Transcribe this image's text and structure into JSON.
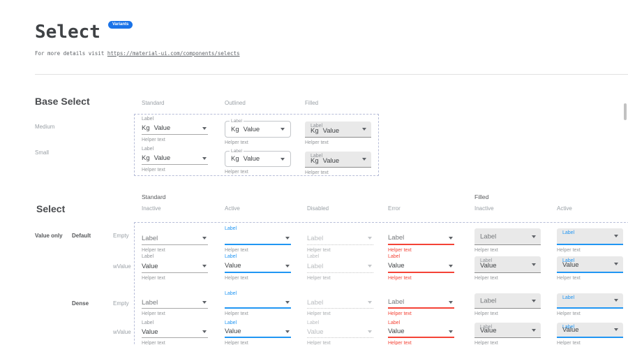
{
  "page": {
    "title": "Select",
    "badge": "Variants",
    "subtitle_prefix": "For more details visit ",
    "subtitle_link": "https://material-ui.com/components/selects"
  },
  "colors": {
    "accent": "#2196F3",
    "error": "#F44336",
    "badge": "#1A73E8",
    "filled_background": "#E9E9E9",
    "dashed_border": "#B7BDD8"
  },
  "base_select": {
    "heading": "Base Select",
    "columns": [
      "Standard",
      "Outlined",
      "Filled"
    ],
    "row_labels": [
      "Medium",
      "Small"
    ],
    "field": {
      "label": "Label",
      "prefix": "Kg",
      "value": "Value",
      "helper": "Helper text"
    }
  },
  "select_sheet": {
    "heading": "Select",
    "group_labels": [
      "Standard",
      "Filled"
    ],
    "columns": [
      {
        "header": "Inactive",
        "variant": "standard",
        "state": "inactive"
      },
      {
        "header": "Active",
        "variant": "standard",
        "state": "active"
      },
      {
        "header": "Disabled",
        "variant": "standard",
        "state": "disabled"
      },
      {
        "header": "Error",
        "variant": "standard",
        "state": "error"
      },
      {
        "header": "Inactive",
        "variant": "filled",
        "state": "inactive"
      },
      {
        "header": "Active",
        "variant": "filled",
        "state": "active"
      }
    ],
    "side_labels": [
      "Value only",
      "Default",
      "Empty",
      "wValue",
      "Dense",
      "Empty",
      "wValue"
    ],
    "rows": [
      {
        "size": "default",
        "kind": "empty",
        "cells": [
          {
            "label": "",
            "value": "Label",
            "helper": "Helper text"
          },
          {
            "label": "Label",
            "value": "",
            "helper": "Helper text"
          },
          {
            "label": "",
            "value": "Label",
            "helper": "Helper text"
          },
          {
            "label": "",
            "value": "Label",
            "helper": "Helper text"
          },
          {
            "label": "",
            "value": "Label",
            "helper": "Helper text"
          },
          {
            "label": "Label",
            "value": "",
            "helper": "Helper text"
          }
        ]
      },
      {
        "size": "default",
        "kind": "value",
        "cells": [
          {
            "label": "Label",
            "value": "Value",
            "helper": "Helper text"
          },
          {
            "label": "Label",
            "value": "Value",
            "helper": "Helper text"
          },
          {
            "label": "Label",
            "value": "Label",
            "helper": "Helper text"
          },
          {
            "label": "Label",
            "value": "Value",
            "helper": "Helper text"
          },
          {
            "label": "Label",
            "value": "Value",
            "helper": "Helper text"
          },
          {
            "label": "Label",
            "value": "Value",
            "helper": "Helper text"
          }
        ]
      },
      {
        "size": "dense",
        "kind": "empty",
        "cells": [
          {
            "label": "",
            "value": "Label",
            "helper": "Helper text"
          },
          {
            "label": "Label",
            "value": "",
            "helper": "Helper text"
          },
          {
            "label": "",
            "value": "Label",
            "helper": "Helper text"
          },
          {
            "label": "",
            "value": "Label",
            "helper": "Helper text"
          },
          {
            "label": "",
            "value": "Label",
            "helper": "Helper text"
          },
          {
            "label": "Label",
            "value": "",
            "helper": "Helper text"
          }
        ]
      },
      {
        "size": "dense",
        "kind": "value",
        "cells": [
          {
            "label": "Label",
            "value": "Value",
            "helper": "Helper text"
          },
          {
            "label": "Label",
            "value": "Value",
            "helper": "Helper text"
          },
          {
            "label": "Label",
            "value": "Value",
            "helper": "Helper text"
          },
          {
            "label": "Label",
            "value": "Value",
            "helper": "Helper text"
          },
          {
            "label": "Label",
            "value": "Value",
            "helper": "Helper text"
          },
          {
            "label": "Label",
            "value": "Value",
            "helper": "Helper text"
          }
        ]
      }
    ]
  }
}
